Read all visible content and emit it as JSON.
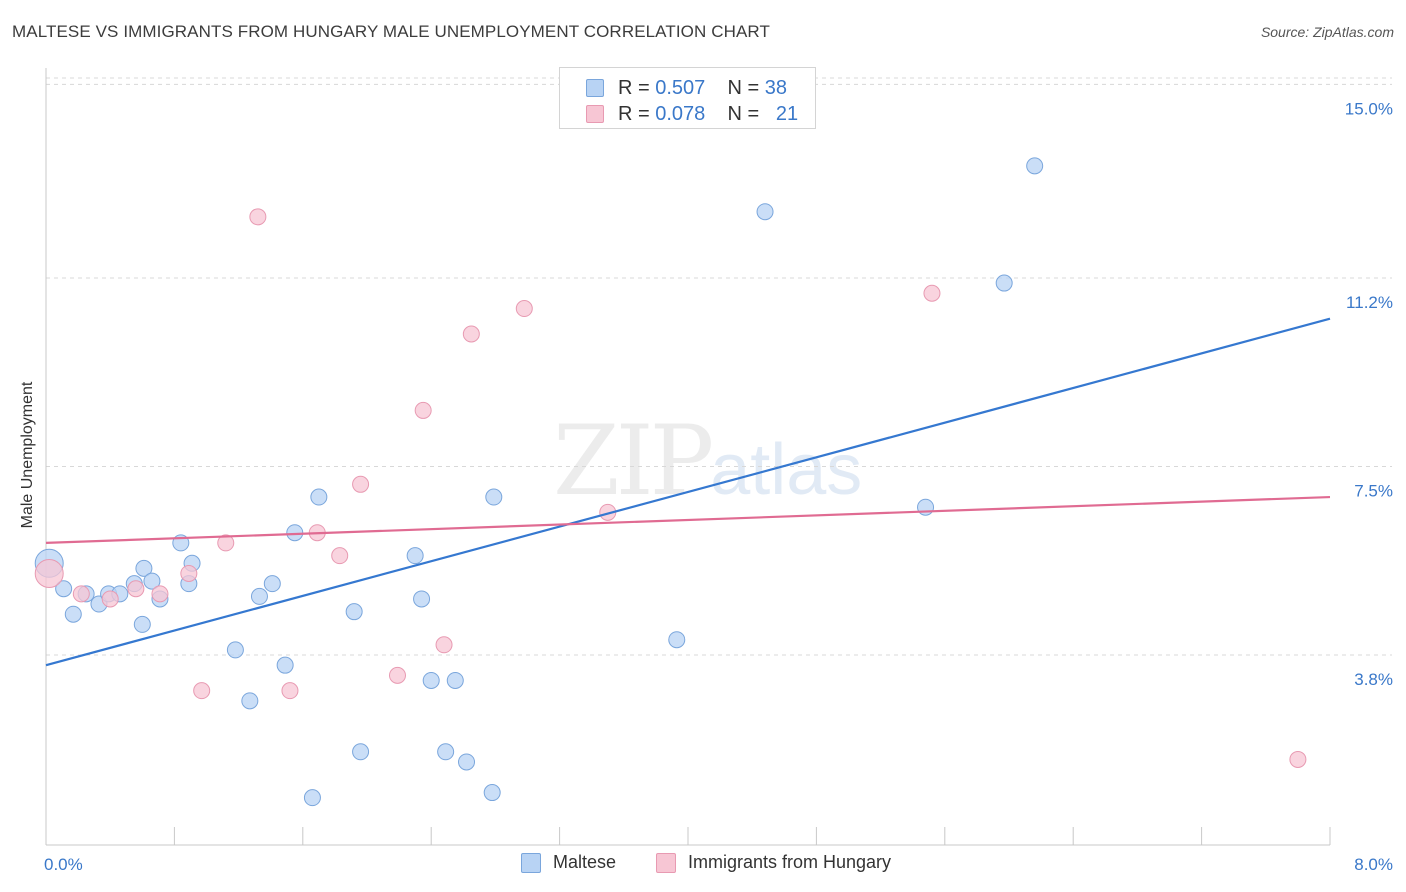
{
  "header": {
    "title": "MALTESE VS IMMIGRANTS FROM HUNGARY MALE UNEMPLOYMENT CORRELATION CHART",
    "source": "Source: ZipAtlas.com"
  },
  "watermark": {
    "zip": "ZIP",
    "atlas": "atlas"
  },
  "legend_top": {
    "rows": [
      {
        "r_label": "R = ",
        "r_value": "0.507",
        "n_label": "N = ",
        "n_value": "38"
      },
      {
        "r_label": "R = ",
        "r_value": "0.078",
        "n_label": "N = ",
        "n_value": "21"
      }
    ]
  },
  "legend_bottom": {
    "items": [
      {
        "label": "Maltese"
      },
      {
        "label": "Immigrants from Hungary"
      }
    ]
  },
  "colors": {
    "blue_fill": "#b8d3f4",
    "blue_stroke": "#7aa6dc",
    "blue_line": "#3578d0",
    "pink_fill": "#f7c6d4",
    "pink_stroke": "#e89ab2",
    "pink_line": "#e06b92",
    "axis_label": "#3a78c9",
    "grid": "#d8d8d8"
  },
  "chart_data": {
    "type": "scatter",
    "title": "MALTESE VS IMMIGRANTS FROM HUNGARY MALE UNEMPLOYMENT CORRELATION CHART",
    "xlabel": "",
    "ylabel": "Male Unemployment",
    "xlim": [
      0,
      8
    ],
    "ylim": [
      0,
      15
    ],
    "x_tick_labels": [
      "0.0%",
      "8.0%"
    ],
    "y_ticks": [
      3.8,
      7.5,
      11.2,
      15.0
    ],
    "y_tick_labels": [
      "3.8%",
      "7.5%",
      "11.2%",
      "15.0%"
    ],
    "grid": "horizontal dashed",
    "legend_position": "top-center",
    "series": [
      {
        "name": "Maltese",
        "r": 0.507,
        "n": 38,
        "points": [
          [
            0.02,
            5.6
          ],
          [
            0.11,
            5.1
          ],
          [
            0.25,
            5.0
          ],
          [
            0.33,
            4.8
          ],
          [
            0.17,
            4.6
          ],
          [
            0.39,
            5.0
          ],
          [
            0.46,
            5.0
          ],
          [
            0.55,
            5.2
          ],
          [
            0.61,
            5.5
          ],
          [
            0.66,
            5.25
          ],
          [
            0.84,
            6.0
          ],
          [
            0.71,
            4.9
          ],
          [
            0.6,
            4.4
          ],
          [
            0.91,
            5.6
          ],
          [
            0.89,
            5.2
          ],
          [
            1.18,
            3.9
          ],
          [
            1.27,
            2.9
          ],
          [
            1.33,
            4.95
          ],
          [
            1.41,
            5.2
          ],
          [
            1.49,
            3.6
          ],
          [
            1.55,
            6.2
          ],
          [
            1.66,
            1.0
          ],
          [
            1.7,
            6.9
          ],
          [
            1.92,
            4.65
          ],
          [
            1.96,
            1.9
          ],
          [
            2.3,
            5.75
          ],
          [
            2.34,
            4.9
          ],
          [
            2.4,
            3.3
          ],
          [
            2.49,
            1.9
          ],
          [
            2.55,
            3.3
          ],
          [
            2.62,
            1.7
          ],
          [
            2.79,
            6.9
          ],
          [
            2.78,
            1.1
          ],
          [
            3.93,
            4.1
          ],
          [
            4.48,
            12.5
          ],
          [
            5.48,
            6.7
          ],
          [
            5.97,
            11.1
          ],
          [
            6.16,
            13.4
          ]
        ],
        "trend": {
          "x": [
            0,
            8
          ],
          "y": [
            3.6,
            10.4
          ]
        }
      },
      {
        "name": "Immigrants from Hungary",
        "r": 0.078,
        "n": 21,
        "points": [
          [
            0.02,
            5.4
          ],
          [
            0.22,
            5.0
          ],
          [
            0.4,
            4.9
          ],
          [
            0.56,
            5.1
          ],
          [
            0.71,
            5.0
          ],
          [
            0.89,
            5.4
          ],
          [
            0.97,
            3.1
          ],
          [
            1.12,
            6.0
          ],
          [
            1.32,
            12.4
          ],
          [
            1.52,
            3.1
          ],
          [
            1.69,
            6.2
          ],
          [
            1.83,
            5.75
          ],
          [
            1.96,
            7.15
          ],
          [
            2.19,
            3.4
          ],
          [
            2.35,
            8.6
          ],
          [
            2.48,
            4.0
          ],
          [
            2.65,
            10.1
          ],
          [
            2.98,
            10.6
          ],
          [
            3.5,
            6.6
          ],
          [
            5.52,
            10.9
          ],
          [
            7.8,
            1.75
          ]
        ],
        "trend": {
          "x": [
            0,
            8
          ],
          "y": [
            6.0,
            6.9
          ]
        }
      }
    ]
  }
}
